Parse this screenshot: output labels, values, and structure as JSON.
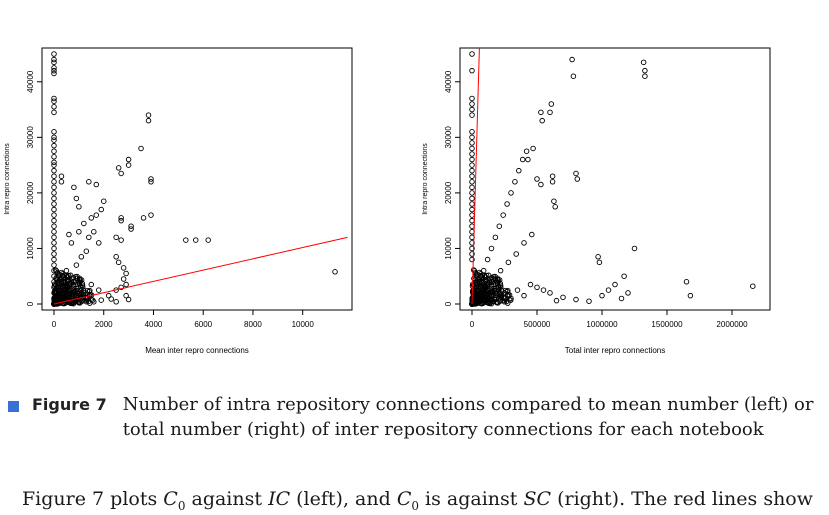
{
  "chart_data": [
    {
      "type": "scatter",
      "xlabel": "Mean inter repro connections",
      "ylabel": "Intra repro connections",
      "xlim": [
        0,
        11500
      ],
      "ylim": [
        0,
        45000
      ],
      "xticks": [
        0,
        2000,
        4000,
        6000,
        8000,
        10000
      ],
      "yticks": [
        0,
        10000,
        20000,
        30000,
        40000
      ],
      "fit_line": {
        "color": "#ff0000",
        "from": [
          0,
          0
        ],
        "to": [
          11800,
          12000
        ]
      },
      "points": [
        [
          0,
          45000
        ],
        [
          0,
          44000
        ],
        [
          0,
          43500
        ],
        [
          0,
          42500
        ],
        [
          0,
          42000
        ],
        [
          0,
          41500
        ],
        [
          0,
          37000
        ],
        [
          0,
          36500
        ],
        [
          0,
          35500
        ],
        [
          0,
          34500
        ],
        [
          0,
          31000
        ],
        [
          0,
          30000
        ],
        [
          0,
          29500
        ],
        [
          0,
          28500
        ],
        [
          0,
          27500
        ],
        [
          0,
          26500
        ],
        [
          0,
          25500
        ],
        [
          0,
          25000
        ],
        [
          0,
          24000
        ],
        [
          0,
          23000
        ],
        [
          0,
          22000
        ],
        [
          0,
          21000
        ],
        [
          0,
          20000
        ],
        [
          0,
          19000
        ],
        [
          0,
          18000
        ],
        [
          0,
          17000
        ],
        [
          0,
          16000
        ],
        [
          0,
          15000
        ],
        [
          0,
          14000
        ],
        [
          0,
          13000
        ],
        [
          0,
          12000
        ],
        [
          0,
          11000
        ],
        [
          0,
          10000
        ],
        [
          0,
          9000
        ],
        [
          0,
          8000
        ],
        [
          0,
          7000
        ],
        [
          0,
          6000
        ],
        [
          0,
          5000
        ],
        [
          0,
          4000
        ],
        [
          0,
          3000
        ],
        [
          0,
          2000
        ],
        [
          0,
          1000
        ],
        [
          300,
          23000
        ],
        [
          300,
          22000
        ],
        [
          800,
          21000
        ],
        [
          900,
          19000
        ],
        [
          1000,
          17500
        ],
        [
          1400,
          22000
        ],
        [
          1700,
          21500
        ],
        [
          1500,
          15500
        ],
        [
          1200,
          14500
        ],
        [
          1000,
          13000
        ],
        [
          600,
          12500
        ],
        [
          700,
          11000
        ],
        [
          1700,
          16000
        ],
        [
          1900,
          17000
        ],
        [
          2000,
          18500
        ],
        [
          1600,
          13000
        ],
        [
          1400,
          12000
        ],
        [
          1800,
          11000
        ],
        [
          1300,
          9500
        ],
        [
          1100,
          8500
        ],
        [
          900,
          7000
        ],
        [
          500,
          6000
        ],
        [
          600,
          5000
        ],
        [
          400,
          4000
        ],
        [
          2600,
          24500
        ],
        [
          2700,
          23500
        ],
        [
          3000,
          26000
        ],
        [
          3000,
          25000
        ],
        [
          3500,
          28000
        ],
        [
          3800,
          34000
        ],
        [
          3800,
          33000
        ],
        [
          3900,
          22500
        ],
        [
          3900,
          22000
        ],
        [
          2700,
          15500
        ],
        [
          2700,
          15000
        ],
        [
          3100,
          14000
        ],
        [
          3100,
          13500
        ],
        [
          3600,
          15500
        ],
        [
          3900,
          16000
        ],
        [
          2500,
          12000
        ],
        [
          2700,
          11500
        ],
        [
          2500,
          8500
        ],
        [
          2600,
          7500
        ],
        [
          2800,
          6500
        ],
        [
          2900,
          5500
        ],
        [
          2800,
          4500
        ],
        [
          2900,
          3500
        ],
        [
          2500,
          2500
        ],
        [
          2900,
          1500
        ],
        [
          2200,
          1500
        ],
        [
          1800,
          2500
        ],
        [
          1500,
          3500
        ],
        [
          1200,
          2000
        ],
        [
          900,
          1500
        ],
        [
          2700,
          3000
        ],
        [
          3000,
          800
        ],
        [
          5300,
          11500
        ],
        [
          5700,
          11500
        ],
        [
          6200,
          11500
        ],
        [
          11300,
          5800
        ],
        [
          200,
          500
        ],
        [
          400,
          800
        ],
        [
          600,
          1200
        ],
        [
          800,
          300
        ],
        [
          1000,
          600
        ],
        [
          1300,
          900
        ],
        [
          1600,
          400
        ],
        [
          1900,
          700
        ],
        [
          2300,
          900
        ],
        [
          2500,
          400
        ]
      ]
    },
    {
      "type": "scatter",
      "xlabel": "Total inter repro connections",
      "ylabel": "Intra repro connections",
      "xlim": [
        0,
        2200000
      ],
      "ylim": [
        0,
        45000
      ],
      "xticks": [
        0,
        500000,
        1000000,
        1500000,
        2000000
      ],
      "yticks": [
        0,
        10000,
        20000,
        30000,
        40000
      ],
      "fit_line": {
        "color": "#ff0000",
        "from": [
          0,
          0
        ],
        "to": [
          58000,
          47000
        ]
      },
      "points": [
        [
          0,
          45000
        ],
        [
          0,
          42000
        ],
        [
          0,
          37000
        ],
        [
          0,
          36000
        ],
        [
          0,
          35000
        ],
        [
          0,
          34000
        ],
        [
          0,
          31000
        ],
        [
          0,
          30000
        ],
        [
          0,
          29000
        ],
        [
          0,
          28000
        ],
        [
          0,
          27000
        ],
        [
          0,
          26000
        ],
        [
          0,
          25000
        ],
        [
          0,
          24000
        ],
        [
          0,
          23000
        ],
        [
          0,
          22000
        ],
        [
          0,
          21000
        ],
        [
          0,
          20000
        ],
        [
          0,
          19000
        ],
        [
          0,
          18000
        ],
        [
          0,
          17000
        ],
        [
          0,
          16000
        ],
        [
          0,
          15000
        ],
        [
          0,
          14000
        ],
        [
          0,
          13000
        ],
        [
          0,
          12000
        ],
        [
          0,
          11000
        ],
        [
          0,
          10000
        ],
        [
          0,
          9000
        ],
        [
          0,
          8000
        ],
        [
          30000,
          2000
        ],
        [
          60000,
          4000
        ],
        [
          90000,
          6000
        ],
        [
          120000,
          8000
        ],
        [
          150000,
          10000
        ],
        [
          180000,
          12000
        ],
        [
          210000,
          14000
        ],
        [
          240000,
          16000
        ],
        [
          270000,
          18000
        ],
        [
          300000,
          20000
        ],
        [
          330000,
          22000
        ],
        [
          360000,
          24000
        ],
        [
          390000,
          26000
        ],
        [
          100000,
          3000
        ],
        [
          160000,
          4500
        ],
        [
          220000,
          6000
        ],
        [
          280000,
          7500
        ],
        [
          340000,
          9000
        ],
        [
          400000,
          11000
        ],
        [
          460000,
          12500
        ],
        [
          420000,
          27500
        ],
        [
          430000,
          26000
        ],
        [
          470000,
          28000
        ],
        [
          530000,
          34500
        ],
        [
          540000,
          33000
        ],
        [
          610000,
          36000
        ],
        [
          600000,
          34500
        ],
        [
          500000,
          22500
        ],
        [
          530000,
          21500
        ],
        [
          620000,
          23000
        ],
        [
          620000,
          22000
        ],
        [
          630000,
          18500
        ],
        [
          640000,
          17500
        ],
        [
          770000,
          44000
        ],
        [
          780000,
          41000
        ],
        [
          800000,
          23500
        ],
        [
          810000,
          22500
        ],
        [
          1320000,
          43500
        ],
        [
          1330000,
          42000
        ],
        [
          1330000,
          41000
        ],
        [
          970000,
          8500
        ],
        [
          980000,
          7500
        ],
        [
          1250000,
          10000
        ],
        [
          1170000,
          5000
        ],
        [
          1100000,
          3500
        ],
        [
          1650000,
          4000
        ],
        [
          1680000,
          1500
        ],
        [
          2160000,
          3200
        ],
        [
          1000000,
          1500
        ],
        [
          1050000,
          2500
        ],
        [
          1150000,
          1000
        ],
        [
          1200000,
          2000
        ],
        [
          900000,
          500
        ],
        [
          800000,
          800
        ],
        [
          700000,
          1200
        ],
        [
          650000,
          600
        ],
        [
          600000,
          2000
        ],
        [
          550000,
          2500
        ],
        [
          500000,
          3000
        ],
        [
          450000,
          3500
        ],
        [
          400000,
          1500
        ],
        [
          350000,
          2500
        ],
        [
          300000,
          1000
        ],
        [
          250000,
          2000
        ],
        [
          200000,
          3000
        ],
        [
          150000,
          1500
        ],
        [
          100000,
          800
        ],
        [
          50000,
          1200
        ]
      ]
    }
  ],
  "caption": {
    "label": "Figure 7",
    "text": "Number of intra repository connections compared to mean number (left) or total number (right) of inter repository connections for each notebook"
  },
  "body": {
    "t1": "Figure 7 plots ",
    "sym1": "C",
    "sub1": "0",
    "t2": " against ",
    "sym2": "IC",
    "t3": " (left), and ",
    "sym3": "C",
    "sub3": "0",
    "t4": " is against ",
    "sym4": "SC",
    "t5": " (right). The red lines show"
  }
}
